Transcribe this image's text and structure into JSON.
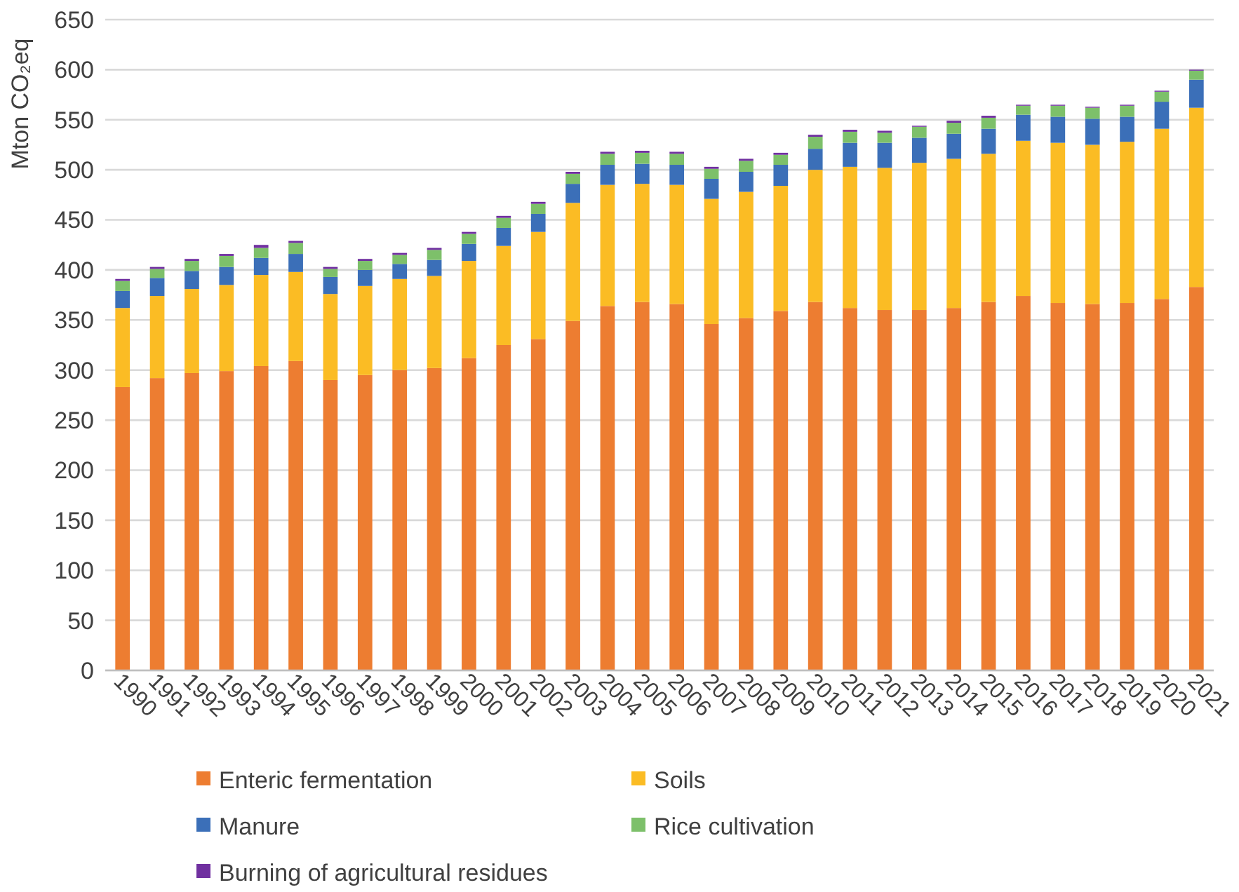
{
  "chart_data": {
    "type": "bar",
    "stacked": true,
    "ylabel": "Mton CO₂eq",
    "categories": [
      "1990",
      "1991",
      "1992",
      "1993",
      "1994",
      "1995",
      "1996",
      "1997",
      "1998",
      "1999",
      "2000",
      "2001",
      "2002",
      "2003",
      "2004",
      "2005",
      "2006",
      "2007",
      "2008",
      "2009",
      "2010",
      "2011",
      "2012",
      "2013",
      "2014",
      "2015",
      "2016",
      "2017",
      "2018",
      "2019",
      "2020",
      "2021"
    ],
    "series": [
      {
        "name": "Enteric fermentation",
        "color": "#ed7d31",
        "values": [
          283,
          292,
          297,
          299,
          304,
          309,
          290,
          295,
          300,
          302,
          312,
          325,
          331,
          349,
          364,
          368,
          366,
          346,
          352,
          359,
          368,
          362,
          360,
          360,
          362,
          368,
          374,
          367,
          366,
          367,
          371,
          383
        ]
      },
      {
        "name": "Soils",
        "color": "#fbbc24",
        "values": [
          79,
          82,
          84,
          86,
          91,
          89,
          86,
          89,
          91,
          92,
          97,
          99,
          107,
          118,
          121,
          118,
          119,
          125,
          126,
          125,
          132,
          141,
          142,
          147,
          149,
          148,
          155,
          160,
          159,
          161,
          170,
          179
        ]
      },
      {
        "name": "Manure",
        "color": "#3b6fb8",
        "values": [
          17,
          18,
          18,
          18,
          17,
          18,
          17,
          16,
          15,
          16,
          17,
          18,
          18,
          19,
          20,
          20,
          20,
          20,
          20,
          21,
          21,
          24,
          25,
          25,
          25,
          25,
          26,
          26,
          26,
          25,
          27,
          28
        ]
      },
      {
        "name": "Rice cultivation",
        "color": "#7dc06a",
        "values": [
          10,
          9,
          10,
          11,
          10,
          11,
          8,
          9,
          9,
          10,
          10,
          10,
          10,
          10,
          11,
          11,
          11,
          10,
          11,
          10,
          12,
          11,
          10,
          11,
          11,
          11,
          9,
          11,
          11,
          11,
          10,
          9
        ]
      },
      {
        "name": "Burning of agricultural residues",
        "color": "#7030a0",
        "values": [
          2,
          2,
          2,
          2,
          3,
          2,
          2,
          2,
          2,
          2,
          2,
          2,
          2,
          2,
          2,
          2,
          2,
          2,
          2,
          2,
          2,
          2,
          2,
          1,
          2,
          2,
          1,
          1,
          1,
          1,
          1,
          1
        ]
      }
    ],
    "ylim": [
      0,
      650
    ],
    "yticks": [
      0,
      50,
      100,
      150,
      200,
      250,
      300,
      350,
      400,
      450,
      500,
      550,
      600,
      650
    ],
    "grid": "y",
    "legend": "bottom"
  }
}
